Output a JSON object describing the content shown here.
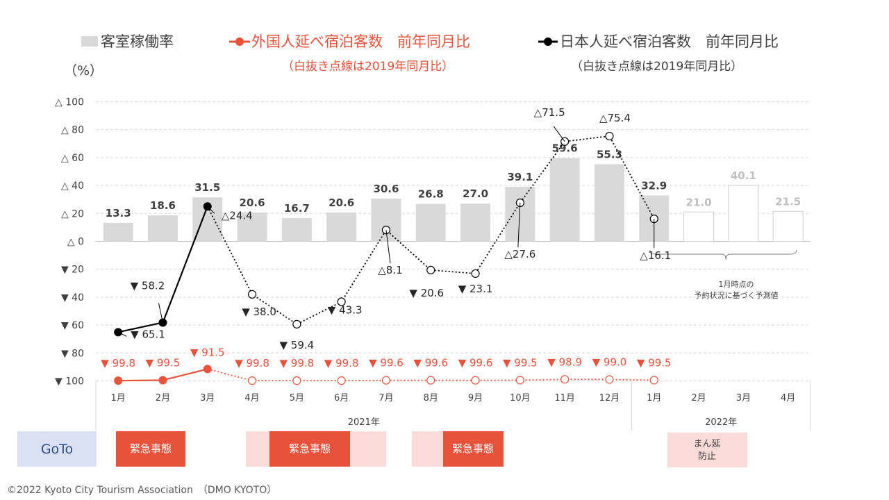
{
  "legend": {
    "occupancy": "客室稼働率",
    "foreign": "外国人延べ宿泊客数　前年同月比",
    "foreign_note": "（白抜き点線は2019年同月比）",
    "japanese": "日本人延べ宿泊客数　前年同月比",
    "japanese_note": "（白抜き点線は2019年同月比）"
  },
  "colors": {
    "bar": "#d9d9d9",
    "foreign": "#e8513a",
    "japanese": "#000000",
    "emergency": "#e8513a",
    "emergency_light": "#fadbd8",
    "goto": "#d9e1f2"
  },
  "chart_data": {
    "type": "bar+line",
    "ylabel": "（%）",
    "ylim": [
      -100,
      100
    ],
    "y_ticks": [
      {
        "value": 100,
        "label": "△ 100"
      },
      {
        "value": 80,
        "label": "△ 80"
      },
      {
        "value": 60,
        "label": "△ 60"
      },
      {
        "value": 40,
        "label": "△ 40"
      },
      {
        "value": 20,
        "label": "△ 20"
      },
      {
        "value": 0,
        "label": "△ 0"
      },
      {
        "value": -20,
        "label": "▼ 20"
      },
      {
        "value": -40,
        "label": "▼ 40"
      },
      {
        "value": -60,
        "label": "▼ 60"
      },
      {
        "value": -80,
        "label": "▼ 80"
      },
      {
        "value": -100,
        "label": "▼ 100"
      }
    ],
    "categories": [
      "1月",
      "2月",
      "3月",
      "4月",
      "5月",
      "6月",
      "7月",
      "8月",
      "9月",
      "10月",
      "11月",
      "12月",
      "1月",
      "2月",
      "3月",
      "4月"
    ],
    "years": [
      {
        "label": "2021年",
        "from": 0,
        "to": 11
      },
      {
        "label": "2022年",
        "from": 12,
        "to": 15
      }
    ],
    "occupancy": {
      "name": "客室稼働率",
      "values": [
        13.3,
        18.6,
        31.5,
        20.6,
        16.7,
        20.6,
        30.6,
        26.8,
        27.0,
        39.1,
        59.6,
        55.3,
        32.9,
        21.0,
        40.1,
        21.5
      ],
      "labels": [
        "13.3",
        "18.6",
        "31.5",
        "20.6",
        "16.7",
        "20.6",
        "30.6",
        "26.8",
        "27.0",
        "39.1",
        "59.6",
        "55.3",
        "32.9",
        "21.0",
        "40.1",
        "21.5"
      ],
      "predicted_from": 13
    },
    "prediction_note": [
      "1月時点の",
      "予約状況に基づく予測値"
    ],
    "foreign": {
      "name": "外国人延べ宿泊客数　前年同月比",
      "values": [
        -99.8,
        -99.5,
        -91.5,
        -99.8,
        -99.8,
        -99.8,
        -99.6,
        -99.6,
        -99.6,
        -99.5,
        -98.9,
        -99.0,
        -99.5
      ],
      "labels": [
        "▼ 99.8",
        "▼ 99.5",
        "▼ 91.5",
        "▼ 99.8",
        "▼ 99.8",
        "▼ 99.8",
        "▼ 99.6",
        "▼ 99.6",
        "▼ 99.6",
        "▼ 99.5",
        "▼ 98.9",
        "▼ 99.0",
        "▼ 99.5"
      ],
      "yoy_until": 2
    },
    "japanese": {
      "name": "日本人延べ宿泊客数　前年同月比",
      "values": [
        -65.1,
        -58.2,
        24.4,
        -38.0,
        -59.4,
        -43.3,
        8.1,
        -20.6,
        -23.1,
        27.6,
        71.5,
        75.4,
        16.1
      ],
      "labels": [
        "▼ 65.1",
        "▼ 58.2",
        "△24.4",
        "▼ 38.0",
        "▼ 59.4",
        "▼ 43.3",
        "△8.1",
        "▼ 20.6",
        "▼ 23.1",
        "△27.6",
        "△71.5",
        "△75.4",
        "△16.1"
      ],
      "yoy_until": 2,
      "first_dashed_value": 24.4,
      "point_before_dashed": 25
    }
  },
  "bottom": {
    "goto": "GoTo",
    "emergency1": "緊急事態",
    "emergency2": "緊急事態",
    "emergency3": "緊急事態",
    "manen": [
      "まん延",
      "防止"
    ]
  },
  "footer": "©2022 Kyoto City Tourism Association　（DMO KYOTO）"
}
